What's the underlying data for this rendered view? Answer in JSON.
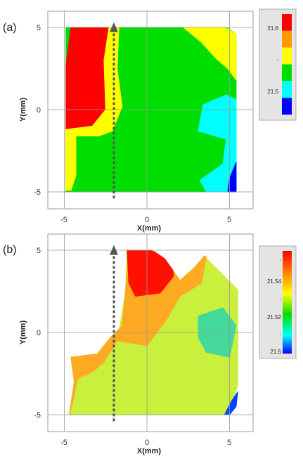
{
  "panels": [
    {
      "panel_label": "(a)",
      "colorbar": {
        "ticks": [
          "21.6",
          "-",
          "21.5"
        ],
        "colors": [
          "#ff0000",
          "#ff9900",
          "#ffff00",
          "#00dd00",
          "#00ffff",
          "#0000ff"
        ]
      },
      "xlabel": "X(mm)",
      "ylabel": "Y(mm)",
      "xticks": [
        "-5",
        "0",
        "5"
      ],
      "yticks": [
        "5",
        "0",
        "-5"
      ]
    },
    {
      "panel_label": "(b)",
      "colorbar": {
        "ticks": [
          "-",
          "21.54",
          "-",
          "21.52",
          "-",
          "21.5"
        ],
        "colors": [
          "#ff0000",
          "#ff8800",
          "#ffff00",
          "#00dd00",
          "#00ffff",
          "#0000ff"
        ]
      },
      "xlabel": "X(mm)",
      "ylabel": "Y(mm)",
      "xticks": [
        "-5",
        "0",
        "5"
      ],
      "yticks": [
        "5",
        "0",
        "-5"
      ]
    }
  ],
  "chart_data": [
    {
      "type": "heatmap",
      "title": "",
      "xlabel": "X(mm)",
      "ylabel": "Y(mm)",
      "xlim": [
        -6,
        6.5
      ],
      "ylim": [
        -6,
        6
      ],
      "grid": true,
      "colorbar_ticks": [
        "21.6",
        "-",
        "21.5"
      ],
      "scan_arrow": {
        "x": -2,
        "y_from": -5.4,
        "y_to": 5.1
      },
      "regions": [
        {
          "level": "green",
          "color": "#00dd00",
          "points": [
            [
              -4.9,
              5
            ],
            [
              4.8,
              5
            ],
            [
              5.4,
              4.6
            ],
            [
              5.4,
              -5
            ],
            [
              -4.9,
              -5
            ],
            [
              -4.9,
              2.7
            ]
          ]
        },
        {
          "level": "red",
          "color": "#ff0000",
          "points": [
            [
              -4.9,
              2.7
            ],
            [
              -4.6,
              5
            ],
            [
              -2,
              5
            ],
            [
              -2.3,
              3
            ],
            [
              -2.2,
              0
            ],
            [
              -3.1,
              -1.2
            ],
            [
              -4.8,
              -1.4
            ],
            [
              -4.9,
              -4.5
            ]
          ]
        },
        {
          "level": "yellow",
          "color": "#ffff00",
          "points": [
            [
              -2.3,
              5
            ],
            [
              -1.7,
              5
            ],
            [
              -1.8,
              2.5
            ],
            [
              -1.5,
              0.2
            ],
            [
              -2.1,
              -1.3
            ],
            [
              -2.9,
              -1.6
            ],
            [
              -4.3,
              -1.6
            ],
            [
              -4.3,
              -4
            ],
            [
              -4.6,
              -4.9
            ],
            [
              -4.9,
              -4.9
            ],
            [
              -4.9,
              -1.2
            ],
            [
              -3.3,
              -1
            ],
            [
              -2.5,
              0
            ],
            [
              -2.6,
              3
            ]
          ]
        },
        {
          "level": "yellow",
          "color": "#ffff00",
          "points": [
            [
              2.2,
              5
            ],
            [
              4.7,
              5
            ],
            [
              5.4,
              4.6
            ],
            [
              5.4,
              1.8
            ],
            [
              4.9,
              2.5
            ],
            [
              4.2,
              3.1
            ],
            [
              3.3,
              4.1
            ]
          ]
        },
        {
          "level": "cyan",
          "color": "#00ffff",
          "points": [
            [
              5.4,
              0.6
            ],
            [
              4.8,
              0.9
            ],
            [
              3.4,
              0.3
            ],
            [
              3.1,
              -1.3
            ],
            [
              4.8,
              -1.8
            ],
            [
              4.6,
              -3.3
            ],
            [
              3.2,
              -4.3
            ],
            [
              3.6,
              -5
            ],
            [
              5.4,
              -5
            ]
          ]
        },
        {
          "level": "blue",
          "color": "#0000ff",
          "points": [
            [
              5.4,
              -3.2
            ],
            [
              5.4,
              -5
            ],
            [
              4.9,
              -5
            ],
            [
              5,
              -4.2
            ]
          ]
        }
      ]
    },
    {
      "type": "heatmap",
      "title": "",
      "xlabel": "X(mm)",
      "ylabel": "Y(mm)",
      "xlim": [
        -6,
        6.5
      ],
      "ylim": [
        -6,
        6
      ],
      "grid": true,
      "colorbar_ticks": [
        "-",
        "21.54",
        "-",
        "21.52",
        "-",
        "21.5"
      ],
      "scan_arrow": {
        "x": -2,
        "y_from": -5.4,
        "y_to": 5.1
      },
      "regions": [
        {
          "level": "yellow-green",
          "color": "#c8f03c",
          "points": [
            [
              -1.2,
              5
            ],
            [
              2.2,
              5
            ],
            [
              3.5,
              4.6
            ],
            [
              5.5,
              2.6
            ],
            [
              5.5,
              -3.2
            ],
            [
              4.9,
              -5
            ],
            [
              -4.7,
              -5
            ],
            [
              -4.4,
              -3
            ],
            [
              -4.6,
              -1.5
            ],
            [
              -3,
              -1.3
            ],
            [
              -2.2,
              -0.3
            ],
            [
              -1.7,
              0
            ],
            [
              -1.3,
              2.5
            ]
          ]
        },
        {
          "level": "orange",
          "color": "#ffaa22",
          "points": [
            [
              -1.1,
              5
            ],
            [
              2.3,
              5
            ],
            [
              3.6,
              4.6
            ],
            [
              3.3,
              3
            ],
            [
              2,
              2.2
            ],
            [
              1.2,
              0.8
            ],
            [
              0,
              -0.8
            ],
            [
              -1.8,
              -0.5
            ],
            [
              -2.6,
              -1.8
            ],
            [
              -3.3,
              -2.4
            ],
            [
              -4.2,
              -2.8
            ],
            [
              -4.5,
              -4.3
            ],
            [
              -4.7,
              -5
            ],
            [
              -4.4,
              -3
            ],
            [
              -4.6,
              -1.5
            ],
            [
              -3,
              -1.3
            ],
            [
              -2.2,
              -0.3
            ],
            [
              -1.5,
              0.4
            ],
            [
              -1.3,
              2.5
            ]
          ]
        },
        {
          "level": "red",
          "color": "#ff1100",
          "points": [
            [
              -1.2,
              5
            ],
            [
              1.5,
              5
            ],
            [
              1.6,
              3.4
            ],
            [
              0.8,
              2.4
            ],
            [
              -0.7,
              2.2
            ],
            [
              -1.1,
              3
            ]
          ]
        },
        {
          "level": "cyan-green",
          "color": "#44d99a",
          "points": [
            [
              3.1,
              1
            ],
            [
              4.6,
              1.5
            ],
            [
              5.4,
              0.4
            ],
            [
              5,
              -1.5
            ],
            [
              3.6,
              -1.2
            ],
            [
              3.1,
              -0.3
            ]
          ]
        },
        {
          "level": "blue",
          "color": "#0044ff",
          "points": [
            [
              5.5,
              -3.6
            ],
            [
              5.4,
              -4.5
            ],
            [
              5,
              -5
            ],
            [
              4.7,
              -5
            ],
            [
              5.1,
              -4.2
            ]
          ]
        }
      ],
      "holes": [
        [
          [
            -0.2,
            5.2
          ],
          [
            3.6,
            5.2
          ],
          [
            3.4,
            4.6
          ],
          [
            2.8,
            3.9
          ],
          [
            2,
            3.2
          ],
          [
            1.1,
            4.5
          ],
          [
            0.5,
            4.9
          ]
        ],
        [
          [
            4.9,
            5.2
          ],
          [
            5.9,
            5.2
          ],
          [
            5.9,
            2.4
          ],
          [
            5.4,
            2.9
          ],
          [
            4.9,
            3.8
          ]
        ]
      ]
    }
  ]
}
